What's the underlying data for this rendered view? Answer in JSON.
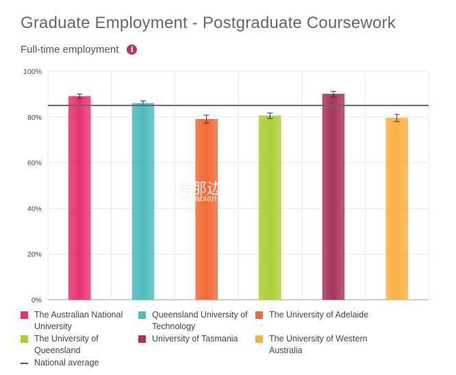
{
  "title": "Graduate Employment - Postgraduate Coursework",
  "subtitle": "Full-time employment",
  "chart_data": {
    "type": "bar",
    "categories": [
      "The Australian National University",
      "Queensland University of Technology",
      "The University of Adelaide",
      "The University of Queensland",
      "University of Tasmania",
      "The University of Western Australia"
    ],
    "values": [
      89,
      86,
      79,
      80.5,
      90,
      79.5
    ],
    "error_margin": [
      1,
      1,
      1.8,
      1.2,
      1.2,
      1.6
    ],
    "colors": [
      "#e8336e",
      "#4bbcbc",
      "#f26a33",
      "#a9cf38",
      "#a6365f",
      "#fbb040"
    ],
    "national_average": 85,
    "ylim": [
      0,
      100
    ],
    "yticks": [
      0,
      20,
      40,
      60,
      80,
      100
    ],
    "ytick_labels": [
      "0%",
      "20%",
      "40%",
      "60%",
      "80%",
      "100%"
    ],
    "grid": true
  },
  "legend": {
    "items": [
      {
        "label_line1": "The Australian National",
        "label_line2": "University"
      },
      {
        "label_line1": "Queensland University of",
        "label_line2": "Technology"
      },
      {
        "label_line1": "The University of Adelaide",
        "label_line2": ""
      },
      {
        "label_line1": "The University of",
        "label_line2": "Queensland"
      },
      {
        "label_line1": "University of Tasmania",
        "label_line2": ""
      },
      {
        "label_line1": "The University of Western",
        "label_line2": "Australia"
      }
    ],
    "average_label": "National average"
  },
  "watermark": {
    "text1": "海那边",
    "text2": "Hinabian"
  }
}
